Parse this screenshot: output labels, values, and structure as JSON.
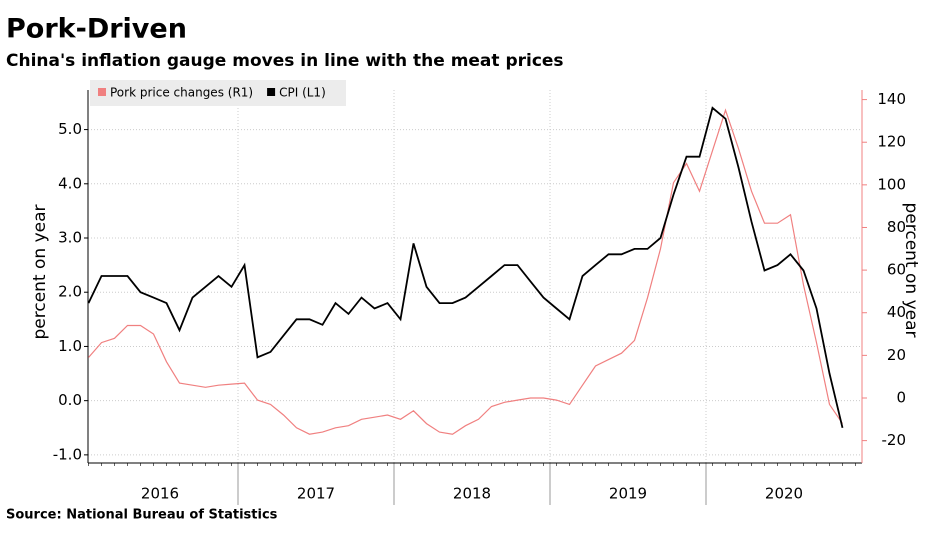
{
  "chart_data": {
    "type": "line",
    "title": "Pork-Driven",
    "subtitle": "China's inflation gauge moves in line with the meat prices",
    "source": "Source: National Bureau of Statistics",
    "ylabel": "percent on year",
    "y2label": "percent on year",
    "year_groups": [
      "2016",
      "2017",
      "2018",
      "2019",
      "2020"
    ],
    "categories": [
      null,
      null,
      null,
      null,
      null,
      null,
      null,
      null,
      null,
      null,
      null,
      null,
      null,
      null,
      null,
      null,
      null,
      null,
      null,
      null,
      null,
      null,
      null,
      null,
      null,
      null,
      null,
      null,
      null,
      null,
      null,
      null,
      null,
      null,
      null,
      null,
      null,
      null,
      null,
      null,
      null,
      null,
      null,
      null,
      null,
      null,
      null,
      null,
      null,
      null,
      null,
      null,
      null,
      null,
      null,
      null,
      null,
      null,
      null
    ],
    "series": [
      {
        "name": "Pork price changes (R1)",
        "color": "#f08080",
        "axis": "y2",
        "values": [
          19,
          26,
          28,
          34,
          34,
          30,
          17,
          7,
          6,
          5,
          6,
          6.5,
          7,
          -1,
          -3,
          -8,
          -14,
          -17,
          -16,
          -14,
          -13,
          -10,
          -9,
          -8,
          -10,
          -6,
          -12,
          -16,
          -17,
          -13,
          -10,
          -4,
          -2,
          -1,
          0,
          0,
          -1,
          -3,
          6,
          15,
          18,
          21,
          27,
          47,
          70,
          101,
          110,
          97,
          116,
          135,
          117,
          97,
          82,
          82,
          86,
          53,
          26,
          -3,
          -12
        ]
      },
      {
        "name": "CPI (L1)",
        "color": "#000000",
        "values": [
          1.8,
          2.3,
          2.3,
          2.3,
          2.0,
          1.9,
          1.8,
          1.3,
          1.9,
          2.1,
          2.3,
          2.1,
          2.5,
          0.8,
          0.9,
          1.2,
          1.5,
          1.5,
          1.4,
          1.8,
          1.6,
          1.9,
          1.7,
          1.8,
          1.5,
          2.9,
          2.1,
          1.8,
          1.8,
          1.9,
          2.1,
          2.3,
          2.5,
          2.5,
          2.2,
          1.9,
          1.7,
          1.5,
          2.3,
          2.5,
          2.7,
          2.7,
          2.8,
          2.8,
          3.0,
          3.8,
          4.5,
          4.5,
          5.4,
          5.2,
          4.3,
          3.3,
          2.4,
          2.5,
          2.7,
          2.4,
          1.7,
          0.5,
          -0.5
        ]
      }
    ],
    "ylim": [
      -1.15,
      5.73
    ],
    "yticks": [
      {
        "value": -1,
        "label": "-1.0"
      },
      {
        "value": 0,
        "label": "0.0"
      },
      {
        "value": 1,
        "label": "1.0"
      },
      {
        "value": 2,
        "label": "2.0"
      },
      {
        "value": 3,
        "label": "3.0"
      },
      {
        "value": 4,
        "label": "4.0"
      },
      {
        "value": 5,
        "label": "5.0"
      }
    ],
    "y2lim": [
      -30.5,
      144.5
    ],
    "y2ticks": [
      -20,
      0,
      20,
      40,
      60,
      80,
      100,
      120,
      140
    ],
    "grid": true,
    "legend": "top-left"
  }
}
